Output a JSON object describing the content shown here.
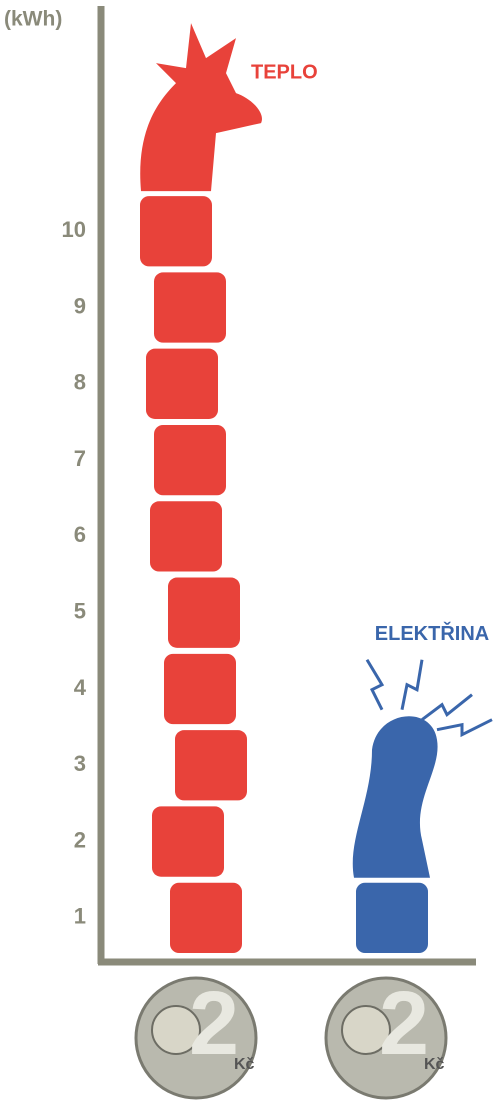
{
  "chart_data": {
    "type": "pictogram",
    "unit_label": "(kWh)",
    "categories": [
      "TEPLO",
      "ELEKTŘINA"
    ],
    "values": [
      10,
      1
    ],
    "colors": [
      "#e8423a",
      "#3a66ab"
    ],
    "ylim": [
      0.5,
      12.9
    ],
    "yticks": [
      1,
      2,
      3,
      4,
      5,
      6,
      7,
      8,
      9,
      10
    ],
    "coin_texts": [
      "2",
      "Kč"
    ]
  }
}
